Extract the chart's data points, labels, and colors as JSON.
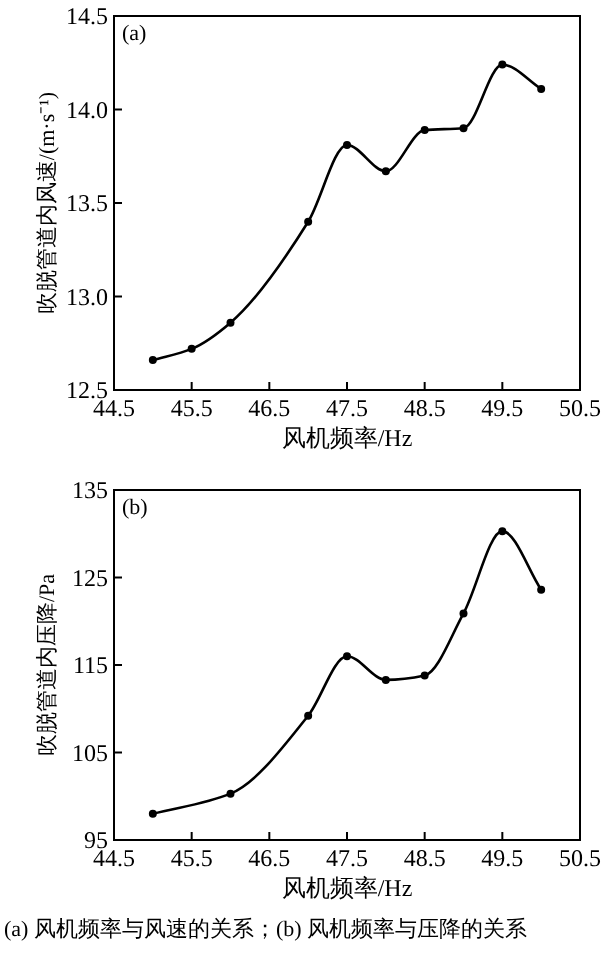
{
  "chart_data": [
    {
      "type": "line",
      "title": "(a)",
      "xlabel": "风机频率/Hz",
      "ylabel": "吹脱管道内风速/(m·s⁻¹)",
      "marker": "circle",
      "line_style": "solid",
      "grid": false,
      "xlim": [
        44.5,
        50.5
      ],
      "xticks": [
        44.5,
        45.5,
        46.5,
        47.5,
        48.5,
        49.5,
        50.5
      ],
      "ylim": [
        12.5,
        14.5
      ],
      "yticks": [
        12.5,
        {
          "value": 13,
          "label": "13.0"
        },
        13.5,
        {
          "value": 14,
          "label": "14.0"
        },
        14.5
      ],
      "series": [
        {
          "color": "#000000",
          "x": [
            45,
            45.5,
            46,
            47,
            47.5,
            48,
            48.5,
            49,
            49.5,
            50
          ],
          "values": [
            12.66,
            12.72,
            12.86,
            13.4,
            13.81,
            13.67,
            13.89,
            13.9,
            14.24,
            14.11
          ]
        }
      ]
    },
    {
      "type": "line",
      "title": "(b)",
      "xlabel": "风机频率/Hz",
      "ylabel": "吹脱管道内压降/Pa",
      "marker": "circle",
      "line_style": "solid",
      "grid": false,
      "xlim": [
        44.5,
        50.5
      ],
      "xticks": [
        44.5,
        45.5,
        46.5,
        47.5,
        48.5,
        49.5,
        50.5
      ],
      "ylim": [
        95,
        135
      ],
      "yticks": [
        95,
        105,
        115,
        125,
        135
      ],
      "series": [
        {
          "color": "#000000",
          "x": [
            45,
            46,
            47,
            47.5,
            48,
            48.5,
            49,
            49.5,
            50
          ],
          "values": [
            98.0,
            100.3,
            109.2,
            116.0,
            113.3,
            113.8,
            120.9,
            130.3,
            123.6
          ]
        }
      ],
      "annotations": [
        "(a) 风机频率与风速的关系；(b) 风机频率与压降的关系"
      ]
    }
  ]
}
